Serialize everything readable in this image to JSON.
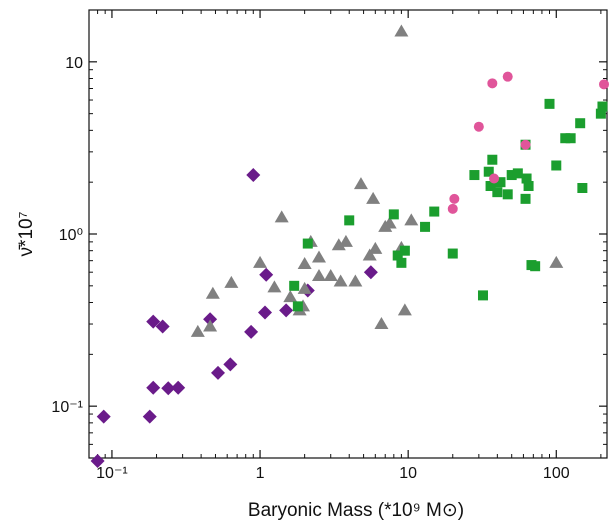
{
  "chart_data": {
    "type": "scatter",
    "title": "",
    "xlabel": "Baryonic Mass (*10⁹ M⊙)",
    "ylabel": "ν̄*10⁷",
    "xscale": "log",
    "yscale": "log",
    "xlim": [
      0.07,
      220
    ],
    "ylim": [
      0.05,
      20
    ],
    "xticks": [
      {
        "value": 0.1,
        "label": "10⁻¹"
      },
      {
        "value": 1,
        "label": "1"
      },
      {
        "value": 10,
        "label": "10"
      },
      {
        "value": 100,
        "label": "100"
      }
    ],
    "yticks": [
      {
        "value": 0.1,
        "label": "10⁻¹"
      },
      {
        "value": 1,
        "label": "10⁰"
      },
      {
        "value": 10,
        "label": "10"
      }
    ],
    "grid": false,
    "legend": "none",
    "series": [
      {
        "marker": "diamond",
        "color": "#6a1b8a",
        "points": [
          [
            0.08,
            0.048
          ],
          [
            0.088,
            0.087
          ],
          [
            0.18,
            0.087
          ],
          [
            0.19,
            0.128
          ],
          [
            0.19,
            0.31
          ],
          [
            0.22,
            0.29
          ],
          [
            0.24,
            0.127
          ],
          [
            0.28,
            0.128
          ],
          [
            0.46,
            0.32
          ],
          [
            0.52,
            0.156
          ],
          [
            0.63,
            0.175
          ],
          [
            0.87,
            0.27
          ],
          [
            0.9,
            2.2
          ],
          [
            1.08,
            0.35
          ],
          [
            1.1,
            0.58
          ],
          [
            1.5,
            0.36
          ],
          [
            2.1,
            0.47
          ],
          [
            5.6,
            0.6
          ]
        ]
      },
      {
        "marker": "triangle",
        "color": "#808080",
        "points": [
          [
            0.38,
            0.27
          ],
          [
            0.46,
            0.29
          ],
          [
            0.48,
            0.45
          ],
          [
            0.64,
            0.52
          ],
          [
            1.0,
            0.68
          ],
          [
            1.25,
            0.49
          ],
          [
            1.4,
            1.25
          ],
          [
            1.6,
            0.43
          ],
          [
            1.85,
            0.36
          ],
          [
            1.95,
            0.38
          ],
          [
            2.0,
            0.48
          ],
          [
            2.0,
            0.67
          ],
          [
            2.2,
            0.9
          ],
          [
            2.5,
            0.57
          ],
          [
            2.5,
            0.73
          ],
          [
            3.0,
            0.57
          ],
          [
            3.4,
            0.86
          ],
          [
            3.5,
            0.53
          ],
          [
            3.8,
            0.9
          ],
          [
            4.4,
            0.53
          ],
          [
            4.8,
            1.95
          ],
          [
            5.5,
            0.75
          ],
          [
            5.8,
            1.6
          ],
          [
            6.0,
            0.82
          ],
          [
            6.6,
            0.3
          ],
          [
            7.0,
            1.1
          ],
          [
            7.5,
            1.15
          ],
          [
            9.0,
            0.83
          ],
          [
            9.5,
            0.36
          ],
          [
            9.0,
            15.0
          ],
          [
            10.5,
            1.2
          ],
          [
            100.0,
            0.68
          ]
        ]
      },
      {
        "marker": "square",
        "color": "#1b9e2e",
        "points": [
          [
            1.7,
            0.5
          ],
          [
            1.8,
            0.38
          ],
          [
            2.1,
            0.88
          ],
          [
            4.0,
            1.2
          ],
          [
            8.0,
            1.3
          ],
          [
            8.5,
            0.75
          ],
          [
            9.0,
            0.68
          ],
          [
            9.5,
            0.8
          ],
          [
            13.0,
            1.1
          ],
          [
            15.0,
            1.35
          ],
          [
            20.0,
            0.77
          ],
          [
            28.0,
            2.2
          ],
          [
            32.0,
            0.44
          ],
          [
            35.0,
            2.3
          ],
          [
            36.0,
            1.9
          ],
          [
            37.0,
            2.7
          ],
          [
            40.0,
            1.75
          ],
          [
            42.0,
            2.0
          ],
          [
            47.0,
            1.7
          ],
          [
            50.0,
            2.2
          ],
          [
            55.0,
            2.25
          ],
          [
            62.0,
            3.3
          ],
          [
            62.0,
            1.6
          ],
          [
            63.0,
            2.1
          ],
          [
            65.0,
            1.9
          ],
          [
            68.0,
            0.66
          ],
          [
            72.0,
            0.65
          ],
          [
            90.0,
            5.7
          ],
          [
            100.0,
            2.5
          ],
          [
            115.0,
            3.6
          ],
          [
            125.0,
            3.6
          ],
          [
            145.0,
            4.4
          ],
          [
            150.0,
            1.85
          ],
          [
            200.0,
            5.0
          ],
          [
            205.0,
            5.5
          ]
        ]
      },
      {
        "marker": "circle",
        "color": "#e0559a",
        "points": [
          [
            20.0,
            1.4
          ],
          [
            20.5,
            1.6
          ],
          [
            30.0,
            4.2
          ],
          [
            37.0,
            7.5
          ],
          [
            38.0,
            2.1
          ],
          [
            47.0,
            8.2
          ],
          [
            62.0,
            3.3
          ],
          [
            210.0,
            7.4
          ]
        ]
      }
    ]
  }
}
